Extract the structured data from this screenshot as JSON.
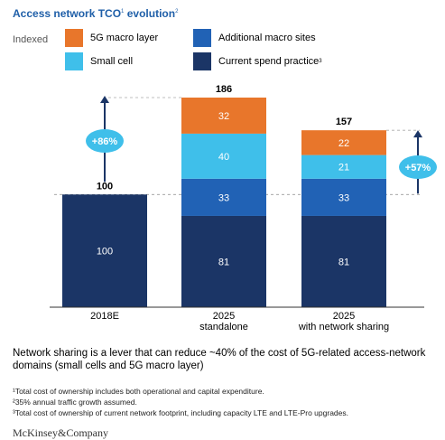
{
  "title": "Access network TCO",
  "title_sup": "1",
  "title_rest": " evolution",
  "title_sup2": "2",
  "indexed_label": "Indexed",
  "legend": [
    {
      "label": "5G macro layer",
      "sup": "",
      "color": "#e8762b"
    },
    {
      "label": "Additional macro sites",
      "sup": "",
      "color": "#2162b5"
    },
    {
      "label": "Small cell",
      "sup": "",
      "color": "#3fbfea"
    },
    {
      "label": "Current spend practice",
      "sup": "3",
      "color": "#1b3566"
    }
  ],
  "chart_data": {
    "type": "bar",
    "stacked": true,
    "categories": [
      "2018E",
      "2025\nstandalone",
      "2025\nwith network sharing"
    ],
    "series": [
      {
        "name": "Current spend practice",
        "color": "#1b3566",
        "values": [
          100,
          81,
          81
        ]
      },
      {
        "name": "Additional macro sites",
        "color": "#2162b5",
        "values": [
          0,
          33,
          33
        ]
      },
      {
        "name": "Small cell",
        "color": "#3fbfea",
        "values": [
          0,
          40,
          21
        ]
      },
      {
        "name": "5G macro layer",
        "color": "#e8762b",
        "values": [
          0,
          32,
          22
        ]
      }
    ],
    "totals": [
      100,
      186,
      157
    ],
    "ylim": [
      0,
      186
    ],
    "annotations": [
      {
        "label": "+86%",
        "between": [
          0,
          1
        ]
      },
      {
        "label": "+57%",
        "between": [
          2,
          1
        ]
      }
    ]
  },
  "summary": "Network sharing is a lever that can reduce ~40% of the cost of 5G-related access-network domains (small cells and 5G macro layer)",
  "footnotes": [
    "¹Total cost of ownership includes both operational and capital expenditure.",
    "²35% annual traffic growth assumed.",
    "³Total cost of ownership of current network footprint, including capacity LTE and LTE-Pro upgrades."
  ],
  "footer": "McKinsey&Company"
}
